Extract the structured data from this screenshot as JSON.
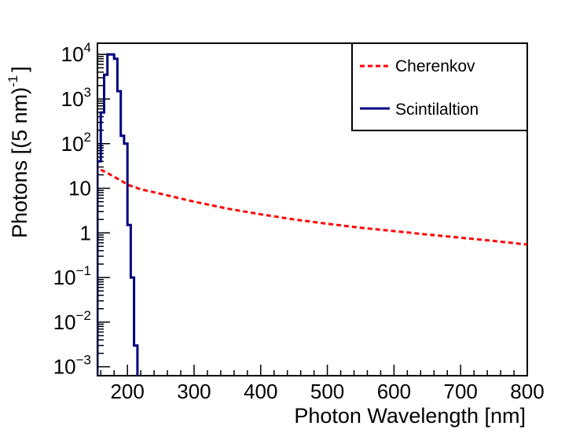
{
  "chart_data": {
    "type": "line",
    "xlabel": "Photon Wavelength [nm]",
    "ylabel_main": "Photons [(5 nm)",
    "ylabel_exp": "-1",
    "ylabel_close": "]",
    "xlim": [
      155,
      800
    ],
    "ylim_log10": [
      -3.2,
      4.25
    ],
    "yscale": "log",
    "x_ticks": [
      200,
      300,
      400,
      500,
      600,
      700,
      800
    ],
    "x_tick_labels": [
      "200",
      "300",
      "400",
      "500",
      "600",
      "700",
      "800"
    ],
    "y_ticks": [
      {
        "value": 0.001,
        "base": "10",
        "exp": "−3"
      },
      {
        "value": 0.01,
        "base": "10",
        "exp": "−2"
      },
      {
        "value": 0.1,
        "base": "10",
        "exp": "−1"
      },
      {
        "value": 1,
        "base": "1",
        "exp": ""
      },
      {
        "value": 10,
        "base": "10",
        "exp": ""
      },
      {
        "value": 100,
        "base": "10",
        "exp": "2"
      },
      {
        "value": 1000,
        "base": "10",
        "exp": "3"
      },
      {
        "value": 10000,
        "base": "10",
        "exp": "4"
      }
    ],
    "legend": {
      "placement": "top-right",
      "entries": [
        "Cherenkov",
        "Scintilaltion"
      ]
    },
    "series": [
      {
        "name": "Cherenkov",
        "color": "#ff0000",
        "style": "dashed",
        "kind": "line",
        "x": [
          160,
          170,
          180,
          190,
          200,
          220,
          250,
          300,
          350,
          400,
          450,
          500,
          550,
          600,
          650,
          700,
          750,
          800
        ],
        "y": [
          26,
          22,
          18,
          15,
          12,
          9.5,
          7.5,
          5.0,
          3.5,
          2.6,
          2.0,
          1.6,
          1.3,
          1.1,
          0.92,
          0.78,
          0.66,
          0.55
        ]
      },
      {
        "name": "Scintilaltion",
        "color": "#000080",
        "style": "solid",
        "kind": "histogram",
        "bin_width": 5,
        "bins_start": [
          155,
          160,
          165,
          170,
          175,
          180,
          185,
          190,
          195,
          200,
          205,
          210,
          215,
          220
        ],
        "values": [
          40,
          500,
          3500,
          10000,
          10000,
          8000,
          1500,
          150,
          100,
          1.5,
          0.1,
          0.003,
          0.0006,
          0.0006
        ]
      }
    ]
  }
}
